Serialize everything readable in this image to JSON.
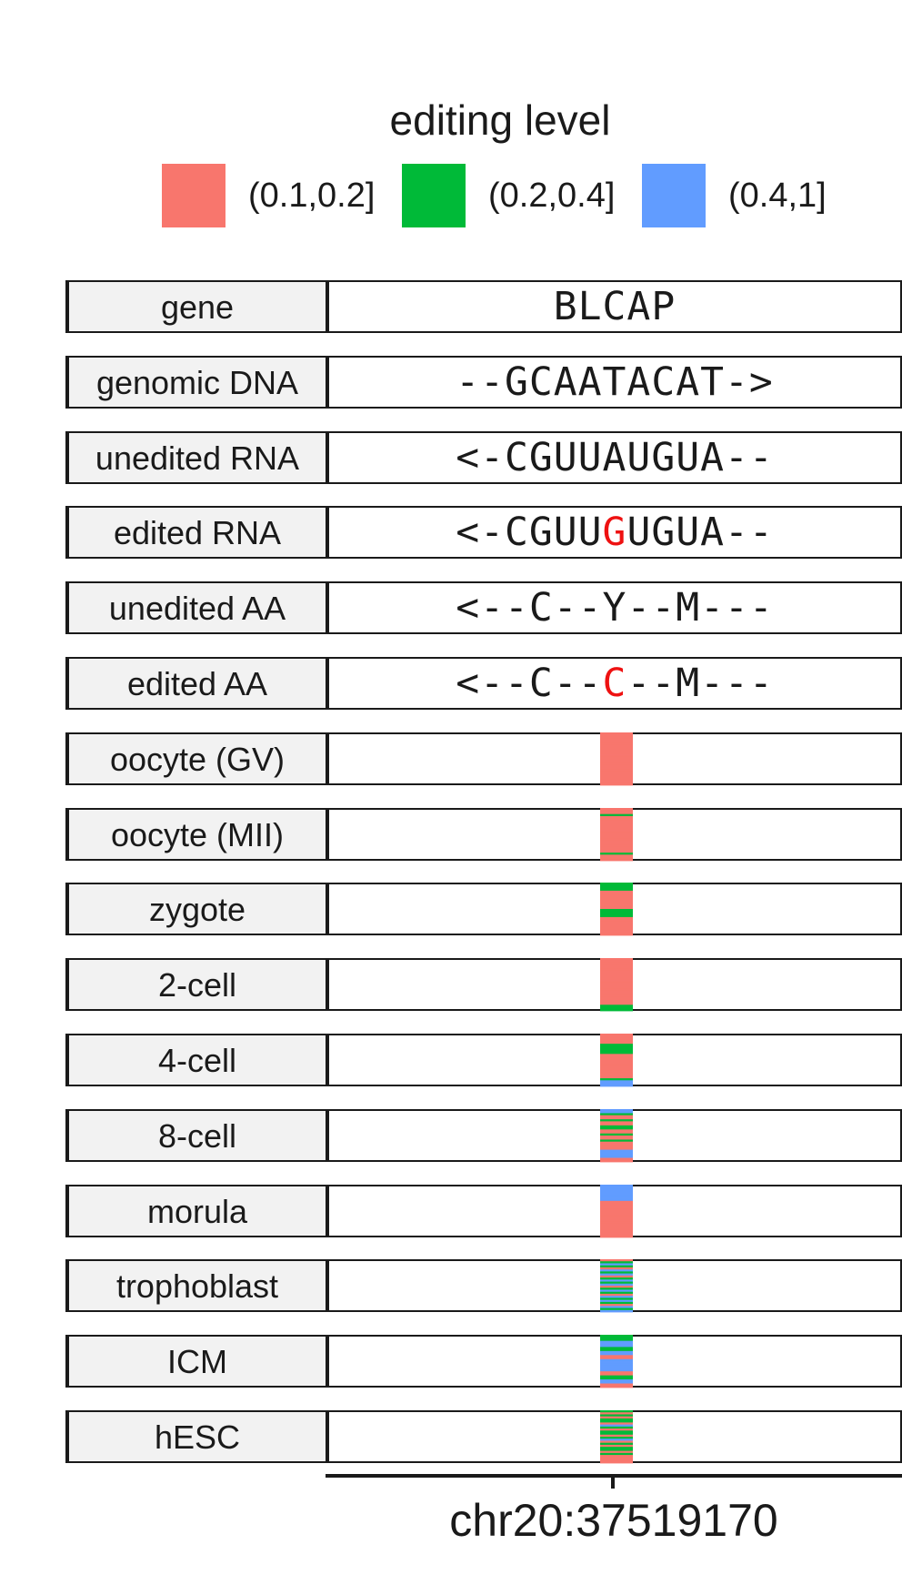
{
  "legend": {
    "title": "editing level",
    "items": [
      {
        "label": "(0.1,0.2]",
        "color": "#F8766D"
      },
      {
        "label": "(0.2,0.4]",
        "color": "#00BA38"
      },
      {
        "label": "(0.4,1]",
        "color": "#619CFF"
      }
    ]
  },
  "track_rows": [
    {
      "label": "gene",
      "seq": [
        "BLCAP"
      ]
    },
    {
      "label": "genomic DNA",
      "seq": [
        "--GCAATACAT->"
      ]
    },
    {
      "label": "unedited RNA",
      "seq": [
        "<-CGUUAUGUA--"
      ]
    },
    {
      "label": "edited RNA",
      "seq": [
        "<-CGUU",
        "G",
        "UGUA--"
      ]
    },
    {
      "label": "unedited AA",
      "seq": [
        "<--C--Y--M---"
      ]
    },
    {
      "label": "edited AA",
      "seq": [
        "<--C--",
        "C",
        "--M---"
      ]
    }
  ],
  "sample_rows": [
    {
      "label": "oocyte (GV)",
      "bands": [
        "r",
        "r",
        "r",
        "r",
        "r",
        "r",
        "r",
        "r",
        "r",
        "r",
        "r",
        "r",
        "r",
        "r",
        "r",
        "r",
        "r",
        "r",
        "r",
        "r",
        "r",
        "r",
        "r",
        "r",
        "r",
        "r"
      ]
    },
    {
      "label": "oocyte (MII)",
      "bands": [
        "r",
        "r",
        "r",
        "g",
        "r",
        "r",
        "r",
        "r",
        "r",
        "r",
        "r",
        "r",
        "r",
        "r",
        "r",
        "r",
        "r",
        "r",
        "r",
        "r",
        "r",
        "r",
        "g",
        "r",
        "r",
        "r"
      ]
    },
    {
      "label": "zygote",
      "bands": [
        "g",
        "g",
        "g",
        "g",
        "r",
        "r",
        "r",
        "r",
        "r",
        "r",
        "r",
        "r",
        "r",
        "g",
        "g",
        "g",
        "g",
        "r",
        "r",
        "r",
        "r",
        "r",
        "r",
        "r",
        "r",
        "r"
      ]
    },
    {
      "label": "2-cell",
      "bands": [
        "r",
        "r",
        "r",
        "r",
        "r",
        "r",
        "r",
        "r",
        "r",
        "r",
        "r",
        "r",
        "r",
        "r",
        "r",
        "r",
        "r",
        "r",
        "r",
        "r",
        "r",
        "r",
        "r",
        "g",
        "g",
        "g"
      ]
    },
    {
      "label": "4-cell",
      "bands": [
        "r",
        "r",
        "r",
        "r",
        "r",
        "g",
        "g",
        "g",
        "g",
        "g",
        "r",
        "r",
        "r",
        "r",
        "r",
        "r",
        "r",
        "r",
        "r",
        "r",
        "r",
        "r",
        "g",
        "b",
        "b",
        "b"
      ]
    },
    {
      "label": "8-cell",
      "bands": [
        "b",
        "b",
        "g",
        "r",
        "r",
        "g",
        "r",
        "r",
        "g",
        "g",
        "r",
        "r",
        "g",
        "r",
        "r",
        "g",
        "r",
        "r",
        "r",
        "r",
        "b",
        "b",
        "b",
        "b",
        "r",
        "r"
      ]
    },
    {
      "label": "morula",
      "bands": [
        "b",
        "b",
        "b",
        "b",
        "b",
        "b",
        "b",
        "b",
        "r",
        "r",
        "r",
        "r",
        "r",
        "r",
        "r",
        "r",
        "r",
        "r",
        "r",
        "r",
        "r",
        "r",
        "r",
        "r",
        "r",
        "r"
      ]
    },
    {
      "label": "trophoblast",
      "bands": [
        "r",
        "g",
        "b",
        "g",
        "r",
        "b",
        "g",
        "b",
        "r",
        "g",
        "b",
        "g",
        "b",
        "r",
        "g",
        "b",
        "g",
        "r",
        "b",
        "g",
        "b",
        "g",
        "r",
        "b",
        "g",
        "b"
      ]
    },
    {
      "label": "ICM",
      "bands": [
        "g",
        "g",
        "g",
        "b",
        "b",
        "b",
        "g",
        "g",
        "b",
        "b",
        "r",
        "r",
        "b",
        "b",
        "b",
        "b",
        "b",
        "b",
        "r",
        "r",
        "g",
        "g",
        "b",
        "b",
        "r",
        "r"
      ]
    },
    {
      "label": "hESC",
      "bands": [
        "g",
        "r",
        "g",
        "r",
        "g",
        "g",
        "r",
        "b",
        "g",
        "r",
        "g",
        "g",
        "r",
        "g",
        "b",
        "r",
        "g",
        "r",
        "g",
        "g",
        "r",
        "g",
        "r",
        "r",
        "r",
        "r"
      ]
    }
  ],
  "band_colors": {
    "r": "#F8766D",
    "g": "#00BA38",
    "b": "#619CFF"
  },
  "axis": {
    "tick_label": "chr20:37519170"
  }
}
